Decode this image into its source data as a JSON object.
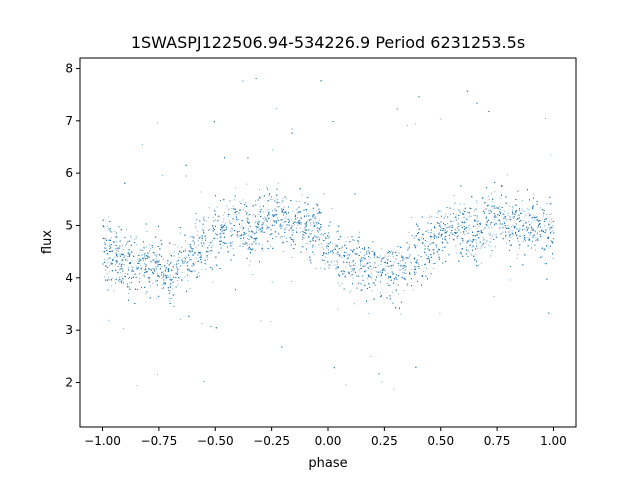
{
  "chart_data": {
    "type": "scatter",
    "title": "1SWASPJ122506.94-534226.9 Period 6231253.5s",
    "xlabel": "phase",
    "ylabel": "flux",
    "xlim": [
      -1.1,
      1.1
    ],
    "ylim": [
      1.15,
      8.2
    ],
    "x_ticks": [
      -1.0,
      -0.75,
      -0.5,
      -0.25,
      0.0,
      0.25,
      0.5,
      0.75,
      1.0
    ],
    "x_tick_labels": [
      "−1.00",
      "−0.75",
      "−0.50",
      "−0.25",
      "0.00",
      "0.25",
      "0.50",
      "0.75",
      "1.00"
    ],
    "y_ticks": [
      2,
      3,
      4,
      5,
      6,
      7,
      8
    ],
    "y_tick_labels": [
      "2",
      "3",
      "4",
      "5",
      "6",
      "7",
      "8"
    ],
    "grid": false,
    "marker_color": "#1f77b4",
    "series": [
      {
        "phase_flux_trend": [
          [
            -1.0,
            4.6
          ],
          [
            -0.95,
            4.4
          ],
          [
            -0.9,
            4.3
          ],
          [
            -0.85,
            4.25
          ],
          [
            -0.8,
            4.2
          ],
          [
            -0.75,
            4.25
          ],
          [
            -0.7,
            4.0
          ],
          [
            -0.65,
            4.3
          ],
          [
            -0.6,
            4.5
          ],
          [
            -0.55,
            4.7
          ],
          [
            -0.5,
            4.85
          ],
          [
            -0.45,
            4.95
          ],
          [
            -0.4,
            5.05
          ],
          [
            -0.35,
            4.8
          ],
          [
            -0.3,
            5.0
          ],
          [
            -0.25,
            5.2
          ],
          [
            -0.2,
            5.1
          ],
          [
            -0.15,
            5.05
          ],
          [
            -0.1,
            5.0
          ],
          [
            -0.05,
            4.95
          ],
          [
            0.0,
            4.6
          ],
          [
            0.05,
            4.4
          ],
          [
            0.1,
            4.3
          ],
          [
            0.15,
            4.25
          ],
          [
            0.2,
            4.2
          ],
          [
            0.25,
            4.25
          ],
          [
            0.3,
            4.0
          ],
          [
            0.35,
            4.3
          ],
          [
            0.4,
            4.5
          ],
          [
            0.45,
            4.7
          ],
          [
            0.5,
            4.85
          ],
          [
            0.55,
            4.95
          ],
          [
            0.6,
            5.05
          ],
          [
            0.65,
            4.8
          ],
          [
            0.7,
            5.0
          ],
          [
            0.75,
            5.2
          ],
          [
            0.8,
            5.1
          ],
          [
            0.85,
            5.05
          ],
          [
            0.9,
            5.0
          ],
          [
            0.95,
            4.95
          ],
          [
            1.0,
            4.8
          ]
        ],
        "scatter_half_width": 0.45,
        "point_count": 9000
      }
    ]
  }
}
